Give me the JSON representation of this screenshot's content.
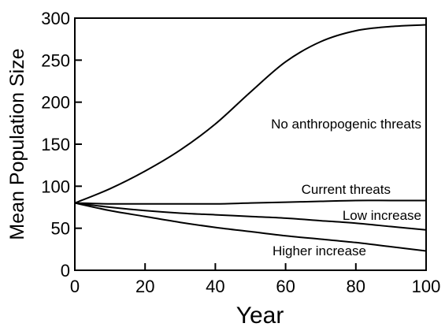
{
  "chart_data": {
    "type": "line",
    "title": "",
    "xlabel": "Year",
    "ylabel": "Mean Population Size",
    "xlim": [
      0,
      100
    ],
    "ylim": [
      0,
      300
    ],
    "xticks": [
      0,
      20,
      40,
      60,
      80,
      100
    ],
    "yticks": [
      0,
      50,
      100,
      150,
      200,
      250,
      300
    ],
    "x": [
      0,
      10,
      20,
      30,
      40,
      50,
      60,
      70,
      80,
      90,
      100
    ],
    "grid": false,
    "legend": "none",
    "series": [
      {
        "name": "No anthropogenic threats",
        "values": [
          80,
          97,
          118,
          143,
          174,
          212,
          248,
          272,
          285,
          290,
          292
        ]
      },
      {
        "name": "Current threats",
        "values": [
          80,
          79,
          79,
          79,
          79,
          80,
          81,
          82,
          83,
          83,
          83
        ]
      },
      {
        "name": "Low increase",
        "values": [
          80,
          75,
          71,
          68,
          66,
          64,
          62,
          59,
          56,
          52,
          48
        ]
      },
      {
        "name": "Higher increase",
        "values": [
          80,
          71,
          64,
          57,
          51,
          46,
          41,
          37,
          33,
          28,
          23
        ]
      }
    ]
  }
}
